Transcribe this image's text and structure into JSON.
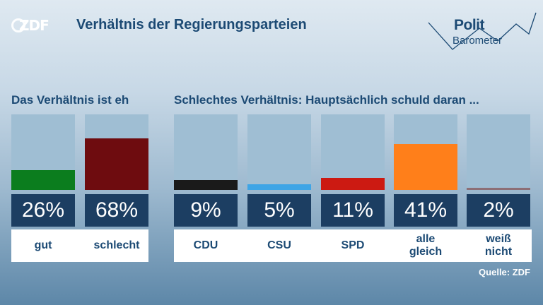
{
  "brand": {
    "logo": "ZDF",
    "product_line1": "Polit",
    "product_line2": "Barometer"
  },
  "header": {
    "title": "Verhältnis der Regierungsparteien"
  },
  "chart_data": [
    {
      "type": "bar",
      "title": "Das Verhältnis ist eh",
      "categories": [
        "gut",
        "schlecht"
      ],
      "values": [
        26,
        68
      ],
      "value_labels": [
        "26%",
        "68%"
      ],
      "colors": [
        "#0b7d1e",
        "#6e0c0f"
      ],
      "ylim": [
        0,
        100
      ]
    },
    {
      "type": "bar",
      "title": "Schlechtes Verhältnis: Hauptsächlich schuld daran ...",
      "categories": [
        "CDU",
        "CSU",
        "SPD",
        "alle\ngleich",
        "weiß\nnicht"
      ],
      "values": [
        9,
        5,
        11,
        41,
        2
      ],
      "value_labels": [
        "9%",
        "5%",
        "11%",
        "41%",
        "2%"
      ],
      "colors": [
        "#1a1a1a",
        "#3ea5e6",
        "#cc1a12",
        "#ff7f1a",
        "#8c6f76"
      ],
      "ylim": [
        0,
        68
      ]
    }
  ],
  "footer": {
    "source": "Quelle: ZDF"
  }
}
